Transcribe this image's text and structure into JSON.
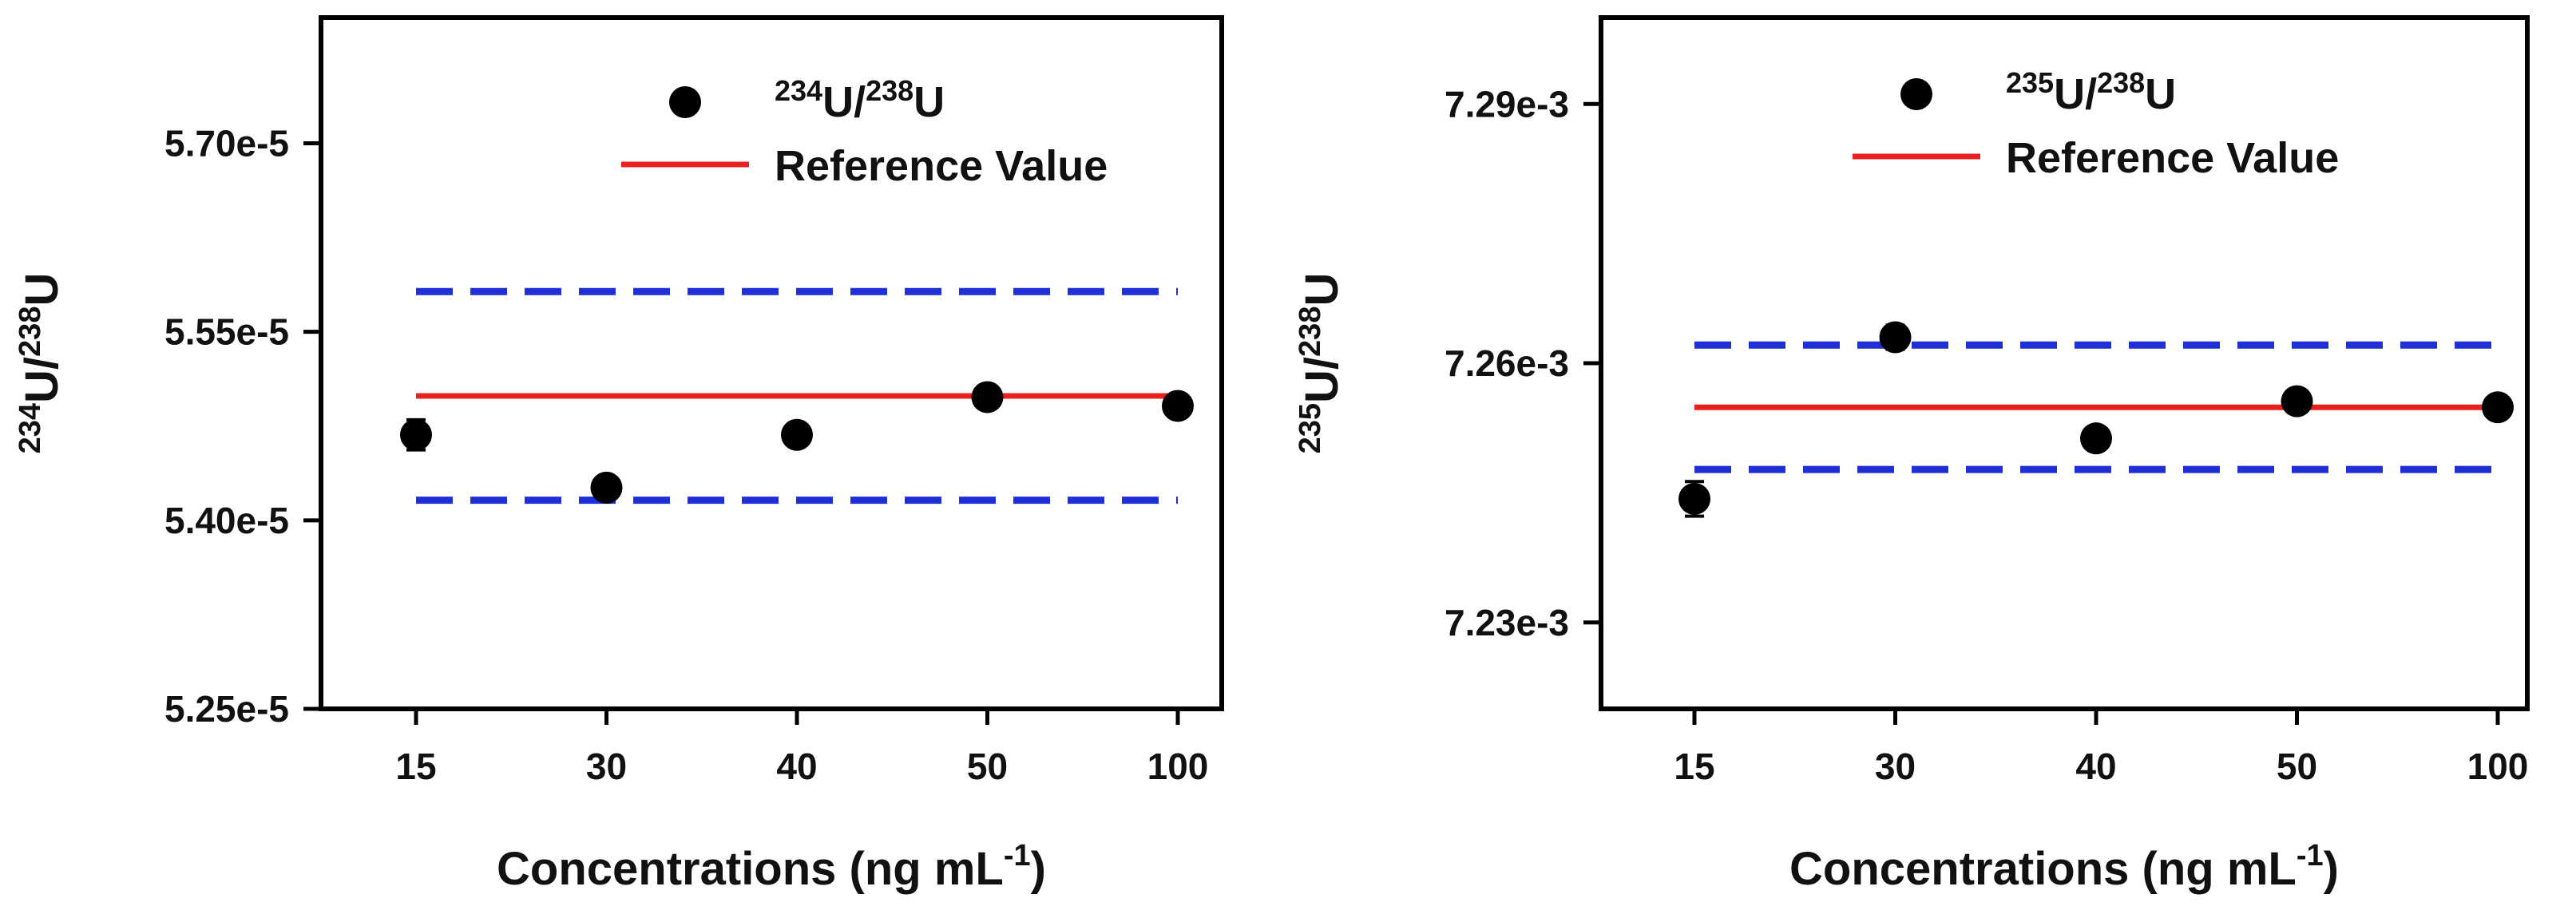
{
  "chart_data": [
    {
      "type": "scatter",
      "categories": [
        "15",
        "30",
        "40",
        "50",
        "100"
      ],
      "xlabel": {
        "main": "Concentrations (ng mL",
        "sup": "-1",
        "close": ")"
      },
      "ylabel": {
        "sup1": "234",
        "base1": "U/",
        "sup2": "238",
        "base2": "U"
      },
      "ylim": [
        5.25e-05,
        5.8e-05
      ],
      "yticks": [
        {
          "value": 5.25e-05,
          "label": "5.25e-5"
        },
        {
          "value": 5.4e-05,
          "label": "5.40e-5"
        },
        {
          "value": 5.55e-05,
          "label": "5.55e-5"
        },
        {
          "value": 5.7e-05,
          "label": "5.70e-5"
        }
      ],
      "series": [
        {
          "name": "234U/238U",
          "values": [
            5.468e-05,
            5.426e-05,
            5.468e-05,
            5.498e-05,
            5.491e-05
          ],
          "errors": [
            1.2e-07,
            4e-08,
            4e-08,
            4e-08,
            4e-08
          ]
        }
      ],
      "reference_value": 5.499e-05,
      "limits": [
        5.416e-05,
        5.582e-05
      ],
      "legend": {
        "marker_label": {
          "sup1": "234",
          "base1": "U/",
          "sup2": "238",
          "base2": "U"
        },
        "line_label": "Reference Value"
      },
      "colors": {
        "points": "#000000",
        "reference": "#e8201f",
        "limits": "#1f2fd6",
        "axes": "#000000"
      }
    },
    {
      "type": "scatter",
      "categories": [
        "15",
        "30",
        "40",
        "50",
        "100"
      ],
      "xlabel": {
        "main": "Concentrations (ng mL",
        "sup": "-1",
        "close": ")"
      },
      "ylabel": {
        "sup1": "235",
        "base1": "U/",
        "sup2": "238",
        "base2": "U"
      },
      "ylim": [
        0.00722,
        0.0073
      ],
      "yticks": [
        {
          "value": 0.00723,
          "label": "7.23e-3"
        },
        {
          "value": 0.00726,
          "label": "7.26e-3"
        },
        {
          "value": 0.00729,
          "label": "7.29e-3"
        }
      ],
      "series": [
        {
          "name": "235U/238U",
          "values": [
            0.0072443,
            0.007263,
            0.0072513,
            0.0072556,
            0.0072549
          ],
          "errors": [
            2e-06,
            1.4e-06,
            1.1e-06,
            9e-07,
            3e-07
          ]
        }
      ],
      "reference_value": 0.0072549,
      "limits": [
        0.0072477,
        0.0072621
      ],
      "legend": {
        "marker_label": {
          "sup1": "235",
          "base1": "U/",
          "sup2": "238",
          "base2": "U"
        },
        "line_label": "Reference Value"
      },
      "colors": {
        "points": "#000000",
        "reference": "#e8201f",
        "limits": "#1f2fd6",
        "axes": "#000000"
      }
    }
  ]
}
